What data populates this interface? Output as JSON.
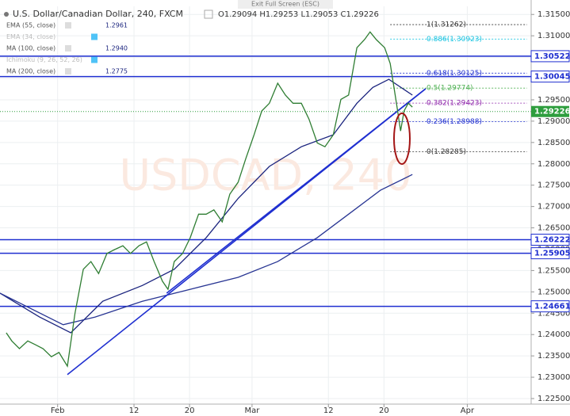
{
  "chart_data": {
    "type": "line",
    "title": "U.S. Dollar/Canadian Dollar, 240, FXCM",
    "ohlc": "O1.29094 H1.29253 L1.29053 C1.29226",
    "toolbar": "Exit Full Screen (ESC)",
    "watermark": "USDCAD, 240",
    "legend": [
      {
        "name": "EMA (55, close)",
        "value": "1.2961"
      },
      {
        "name": "EMA (34, close)"
      },
      {
        "name": "MA (100, close)",
        "value": "1.2940"
      },
      {
        "name": "Ichimoku (9, 26, 52, 26)"
      },
      {
        "name": "MA (200, close)",
        "value": "1.2775"
      }
    ],
    "xlim": [
      -7.3,
      69.2
    ],
    "ylim": [
      1.2237,
      1.3169
    ],
    "xticks": [
      {
        "value": 1,
        "label": "Feb"
      },
      12,
      20,
      {
        "value": 29,
        "label": "Mar"
      },
      {
        "value": 40,
        "label": "12"
      },
      {
        "value": 48,
        "label": "20"
      },
      {
        "value": 60,
        "label": "Apr"
      }
    ],
    "yticks": [
      {
        "value": 1.225,
        "label": "1.22500"
      },
      {
        "value": 1.23,
        "label": "1.23000"
      },
      {
        "value": 1.235,
        "label": "1.23500"
      },
      {
        "value": 1.24,
        "label": "1.24000"
      },
      {
        "value": 1.245,
        "label": "1.24500"
      },
      {
        "value": 1.25,
        "label": "1.25000"
      },
      {
        "value": 1.255,
        "label": "1.25500"
      },
      {
        "value": 1.26,
        "label": "1.26000"
      },
      {
        "value": 1.265,
        "label": "1.26500"
      },
      {
        "value": 1.27,
        "label": "1.27000"
      },
      {
        "value": 1.275,
        "label": "1.27500"
      },
      {
        "value": 1.28,
        "label": "1.28000"
      },
      {
        "value": 1.285,
        "label": "1.28500"
      },
      {
        "value": 1.29,
        "label": "1.29000"
      },
      {
        "value": 1.295,
        "label": "1.29500"
      },
      {
        "value": 1.3,
        "label": "1.30000"
      },
      {
        "value": 1.305,
        "label": "1.30500"
      },
      {
        "value": 1.31,
        "label": "1.31000"
      },
      {
        "value": 1.315,
        "label": "1.31500"
      }
    ],
    "grid": true,
    "price": {
      "color": "#2e7d32",
      "x": [
        -6.4,
        -5.6,
        -4.5,
        -3.3,
        -2.2,
        -1.1,
        0.1,
        1.2,
        2.4,
        3.5,
        4.7,
        5.8,
        6.9,
        8.1,
        9.2,
        10.4,
        11.5,
        12.7,
        13.8,
        14.9,
        16.1,
        16.9,
        17.8,
        19.0,
        20.1,
        21.3,
        22.4,
        23.5,
        24.7,
        25.8,
        27.0,
        28.1,
        29.3,
        30.4,
        31.5,
        32.7,
        33.8,
        34.9,
        36.1,
        37.2,
        38.4,
        39.5,
        40.7,
        41.8,
        42.9,
        44.1,
        45.2,
        46.0,
        46.9,
        48.1,
        48.9,
        49.8,
        50.4,
        50.9,
        51.5,
        52.1
      ],
      "values": [
        1.2404,
        1.2385,
        1.2367,
        1.2385,
        1.2376,
        1.2367,
        1.2348,
        1.2358,
        1.2326,
        1.245,
        1.2553,
        1.2571,
        1.2543,
        1.259,
        1.2599,
        1.2608,
        1.259,
        1.2608,
        1.2617,
        1.2571,
        1.2525,
        1.2506,
        1.2571,
        1.259,
        1.2627,
        1.2682,
        1.2682,
        1.2692,
        1.2664,
        1.2729,
        1.2757,
        1.2812,
        1.2868,
        1.2924,
        1.2942,
        1.2989,
        1.2961,
        1.2942,
        1.2942,
        1.2905,
        1.2849,
        1.284,
        1.2868,
        1.2951,
        1.2961,
        1.3072,
        1.3091,
        1.3109,
        1.3091,
        1.3072,
        1.3035,
        1.2942,
        1.2877,
        1.2924,
        1.2942,
        1.2933
      ]
    },
    "averages": [
      {
        "color": "#1a237e",
        "x": [
          -7.3,
          -1.6,
          2.9,
          7.5,
          13.2,
          17.8,
          22.4,
          27.0,
          31.5,
          36.1,
          40.7,
          44.1,
          46.4,
          48.7,
          52.1
        ],
        "values": [
          1.2497,
          1.2441,
          1.2404,
          1.2478,
          1.2515,
          1.2553,
          1.2627,
          1.2719,
          1.2794,
          1.284,
          1.2868,
          1.2942,
          1.2979,
          1.2998,
          1.2961
        ]
      },
      {
        "color": "#283593",
        "x": [
          -7.3,
          1.8,
          6.4,
          13.2,
          20.1,
          27.0,
          32.7,
          38.4,
          42.9,
          47.5,
          52.1
        ],
        "values": [
          1.2497,
          1.2423,
          1.2441,
          1.2478,
          1.2506,
          1.2534,
          1.2571,
          1.2627,
          1.2682,
          1.2738,
          1.2775
        ]
      }
    ],
    "trendlines": [
      {
        "color": "#1f2fd0",
        "x": [
          2.4,
          54.0
        ],
        "values": [
          1.2306,
          1.2976
        ]
      },
      {
        "color": "#1f2fd0",
        "x": [
          16.7,
          54.0
        ],
        "values": [
          1.2497,
          1.2976
        ]
      }
    ],
    "levels": [
      1.30522,
      1.30045,
      1.26222,
      1.25905,
      1.24661
    ],
    "level_color": "#1f2fd0",
    "last_price": 1.29226,
    "last_color": "#2e9e3e",
    "fib": {
      "x": [
        48.9,
        68.6
      ],
      "levels": [
        {
          "text": "1(1.31262)",
          "value": 1.31262,
          "color": "#333333"
        },
        {
          "text": "0.886(1.30923)",
          "value": 1.30923,
          "color": "#19c3e0"
        },
        {
          "text": "0.618(1.30125)",
          "value": 1.30125,
          "color": "#1f2fd0"
        },
        {
          "text": "0.5(1.29774)",
          "value": 1.29774,
          "color": "#4caf50"
        },
        {
          "text": "0.382(1.29423)",
          "value": 1.29423,
          "color": "#8e24aa"
        },
        {
          "text": "0.236(1.28988)",
          "value": 1.28988,
          "color": "#1f2fd0"
        },
        {
          "text": "0(1.28285)",
          "value": 1.28285,
          "color": "#333333"
        }
      ]
    }
  }
}
